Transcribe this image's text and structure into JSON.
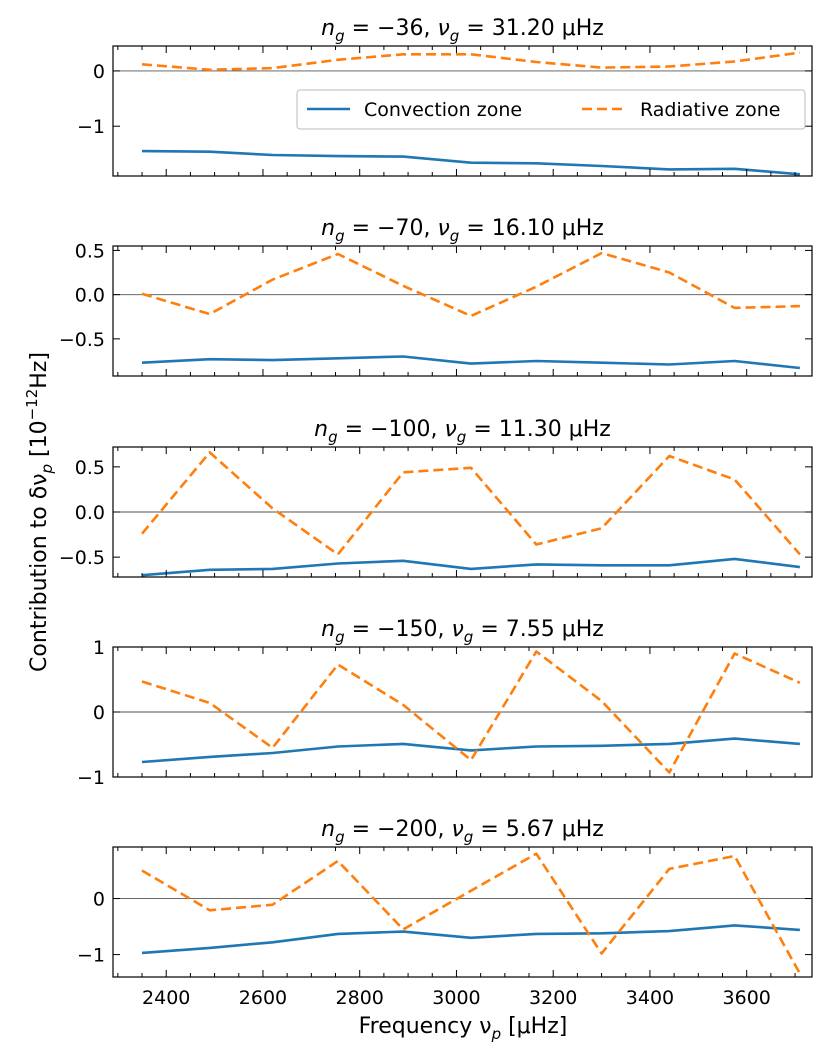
{
  "figure": {
    "ylabel_main": "Contribution to δν",
    "ylabel_sub": "p",
    "ylabel_unit_prefix": "[10",
    "ylabel_unit_exp": "−12",
    "ylabel_unit_suffix": "Hz]",
    "xlabel_main": "Frequency ν",
    "xlabel_sub": "p",
    "xlabel_unit": "[μHz]",
    "x_ticks": [
      2400,
      2600,
      2800,
      3000,
      3200,
      3400,
      3600
    ]
  },
  "legend": {
    "location": "upper-right of first panel",
    "entries": [
      {
        "label": "Convection zone",
        "color": "#1f77b4",
        "style": "solid"
      },
      {
        "label": "Radiative zone",
        "color": "#ff7f0e",
        "style": "dashed"
      }
    ]
  },
  "chart_data": [
    {
      "type": "line",
      "n_g": "−36",
      "nu_g": "31.20",
      "unit": "μHz",
      "xlim": [
        2290,
        3735
      ],
      "ylim": [
        -1.9,
        0.45
      ],
      "yticks": [
        0,
        -1
      ],
      "ytick_labels": [
        "0",
        "−1"
      ],
      "x": [
        2350,
        2490,
        2620,
        2755,
        2890,
        3030,
        3165,
        3300,
        3440,
        3575,
        3710
      ],
      "series": [
        {
          "name": "Convection zone",
          "values": [
            -1.45,
            -1.46,
            -1.52,
            -1.54,
            -1.55,
            -1.66,
            -1.67,
            -1.72,
            -1.78,
            -1.77,
            -1.87
          ]
        },
        {
          "name": "Radiative zone",
          "values": [
            0.12,
            0.02,
            0.05,
            0.2,
            0.3,
            0.3,
            0.16,
            0.06,
            0.08,
            0.17,
            0.33
          ]
        }
      ]
    },
    {
      "type": "line",
      "n_g": "−70",
      "nu_g": "16.10",
      "unit": "μHz",
      "xlim": [
        2290,
        3735
      ],
      "ylim": [
        -0.92,
        0.55
      ],
      "yticks": [
        0.5,
        0,
        -0.5
      ],
      "ytick_labels": [
        "0.5",
        "0.0",
        "−0.5"
      ],
      "x": [
        2350,
        2490,
        2620,
        2755,
        2890,
        3030,
        3165,
        3300,
        3440,
        3575,
        3710
      ],
      "series": [
        {
          "name": "Convection zone",
          "values": [
            -0.77,
            -0.73,
            -0.74,
            -0.72,
            -0.7,
            -0.78,
            -0.75,
            -0.77,
            -0.79,
            -0.75,
            -0.83
          ]
        },
        {
          "name": "Radiative zone",
          "values": [
            0.01,
            -0.22,
            0.17,
            0.46,
            0.1,
            -0.24,
            0.09,
            0.47,
            0.25,
            -0.15,
            -0.13
          ]
        }
      ]
    },
    {
      "type": "line",
      "n_g": "−100",
      "nu_g": "11.30",
      "unit": "μHz",
      "xlim": [
        2290,
        3735
      ],
      "ylim": [
        -0.72,
        0.72
      ],
      "yticks": [
        0.5,
        0,
        -0.5
      ],
      "ytick_labels": [
        "0.5",
        "0.0",
        "−0.5"
      ],
      "x": [
        2350,
        2490,
        2620,
        2755,
        2890,
        3030,
        3165,
        3300,
        3440,
        3575,
        3710
      ],
      "series": [
        {
          "name": "Convection zone",
          "values": [
            -0.7,
            -0.64,
            -0.63,
            -0.57,
            -0.54,
            -0.63,
            -0.58,
            -0.59,
            -0.59,
            -0.52,
            -0.61
          ]
        },
        {
          "name": "Radiative zone",
          "values": [
            -0.24,
            0.66,
            0.04,
            -0.47,
            0.44,
            0.49,
            -0.36,
            -0.18,
            0.62,
            0.36,
            -0.47
          ]
        }
      ]
    },
    {
      "type": "line",
      "n_g": "−150",
      "nu_g": "7.55",
      "unit": "μHz",
      "xlim": [
        2290,
        3735
      ],
      "ylim": [
        -1.0,
        1.0
      ],
      "yticks": [
        1,
        0,
        -1
      ],
      "ytick_labels": [
        "1",
        "0",
        "−1"
      ],
      "x": [
        2350,
        2490,
        2620,
        2755,
        2890,
        3030,
        3165,
        3300,
        3440,
        3575,
        3710
      ],
      "series": [
        {
          "name": "Convection zone",
          "values": [
            -0.77,
            -0.69,
            -0.63,
            -0.53,
            -0.49,
            -0.59,
            -0.53,
            -0.52,
            -0.49,
            -0.41,
            -0.49
          ]
        },
        {
          "name": "Radiative zone",
          "values": [
            0.47,
            0.14,
            -0.55,
            0.73,
            0.11,
            -0.74,
            0.93,
            0.17,
            -0.93,
            0.9,
            0.45
          ]
        }
      ]
    },
    {
      "type": "line",
      "n_g": "−200",
      "nu_g": "5.67",
      "unit": "μHz",
      "xlim": [
        2290,
        3735
      ],
      "ylim": [
        -1.4,
        0.92
      ],
      "yticks": [
        0,
        -1
      ],
      "ytick_labels": [
        "0",
        "−1"
      ],
      "x": [
        2350,
        2490,
        2620,
        2755,
        2890,
        3030,
        3165,
        3300,
        3440,
        3575,
        3710
      ],
      "series": [
        {
          "name": "Convection zone",
          "values": [
            -0.97,
            -0.88,
            -0.78,
            -0.63,
            -0.59,
            -0.7,
            -0.63,
            -0.62,
            -0.58,
            -0.48,
            -0.56
          ]
        },
        {
          "name": "Radiative zone",
          "values": [
            0.5,
            -0.21,
            -0.11,
            0.67,
            -0.55,
            0.14,
            0.8,
            -0.98,
            0.53,
            0.76,
            -1.34
          ]
        }
      ]
    }
  ]
}
